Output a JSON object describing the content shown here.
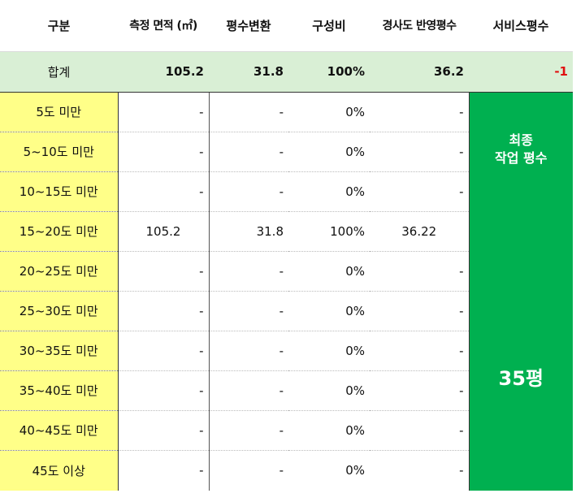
{
  "headers": [
    "구분",
    "측정 면적 (㎡)",
    "평수변환",
    "구성비",
    "경사도 반영평수",
    "서비스평수"
  ],
  "total": {
    "label": "합계",
    "area": "105.2",
    "pyeong": "31.8",
    "ratio": "100%",
    "slope_pyeong": "36.2",
    "service": "-1"
  },
  "rows": [
    {
      "label": "5도 미만",
      "area": "-",
      "pyeong": "-",
      "ratio": "0%",
      "slope_pyeong": "-"
    },
    {
      "label": "5~10도 미만",
      "area": "-",
      "pyeong": "-",
      "ratio": "0%",
      "slope_pyeong": "-"
    },
    {
      "label": "10~15도 미만",
      "area": "-",
      "pyeong": "-",
      "ratio": "0%",
      "slope_pyeong": "-"
    },
    {
      "label": "15~20도 미만",
      "area": "105.2",
      "pyeong": "31.8",
      "ratio": "100%",
      "slope_pyeong": "36.22"
    },
    {
      "label": "20~25도 미만",
      "area": "-",
      "pyeong": "-",
      "ratio": "0%",
      "slope_pyeong": "-"
    },
    {
      "label": "25~30도 미만",
      "area": "-",
      "pyeong": "-",
      "ratio": "0%",
      "slope_pyeong": "-"
    },
    {
      "label": "30~35도 미만",
      "area": "-",
      "pyeong": "-",
      "ratio": "0%",
      "slope_pyeong": "-"
    },
    {
      "label": "35~40도 미만",
      "area": "-",
      "pyeong": "-",
      "ratio": "0%",
      "slope_pyeong": "-"
    },
    {
      "label": "40~45도 미만",
      "area": "-",
      "pyeong": "-",
      "ratio": "0%",
      "slope_pyeong": "-"
    },
    {
      "label": "45도 이상",
      "area": "-",
      "pyeong": "-",
      "ratio": "0%",
      "slope_pyeong": "-"
    }
  ],
  "final": {
    "title_line1": "최종",
    "title_line2": "작업 평수",
    "value": "35평"
  },
  "colors": {
    "label_bg": "#ffff88",
    "total_bg": "#d9efd5",
    "final_bg": "#00b050",
    "negative": "#e01010"
  }
}
